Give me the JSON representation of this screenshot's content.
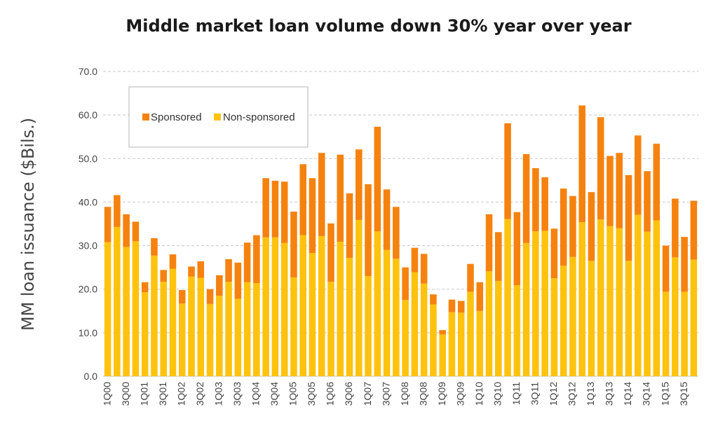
{
  "chart_data": {
    "type": "bar",
    "stacked": true,
    "title": "Middle market loan volume down 30% year over year",
    "ylabel": "MM loan issuance ($Bils.)",
    "xlabel": "",
    "ylim": [
      0,
      70
    ],
    "yticks": [
      0,
      10,
      20,
      30,
      40,
      50,
      60,
      70
    ],
    "ytick_labels": [
      "0.0",
      "10.0",
      "20.0",
      "30.0",
      "40.0",
      "50.0",
      "60.0",
      "70.0"
    ],
    "grid": true,
    "legend_position": "top-left",
    "colors": {
      "Sponsored": "#F5820F",
      "Non-sponsored": "#FFC20E"
    },
    "categories": [
      "1Q00",
      "2Q00",
      "3Q00",
      "4Q00",
      "1Q01",
      "2Q01",
      "3Q01",
      "4Q01",
      "1Q02",
      "2Q02",
      "3Q02",
      "4Q02",
      "1Q03",
      "2Q03",
      "3Q03",
      "4Q03",
      "1Q04",
      "2Q04",
      "3Q04",
      "4Q04",
      "1Q05",
      "2Q05",
      "3Q05",
      "4Q05",
      "1Q06",
      "2Q06",
      "3Q06",
      "4Q06",
      "1Q07",
      "2Q07",
      "3Q07",
      "4Q07",
      "1Q08",
      "2Q08",
      "3Q08",
      "4Q08",
      "1Q09",
      "2Q09",
      "3Q09",
      "4Q09",
      "1Q10",
      "2Q10",
      "3Q10",
      "4Q10",
      "1Q11",
      "2Q11",
      "3Q11",
      "4Q11",
      "1Q12",
      "2Q12",
      "3Q12",
      "4Q12",
      "1Q13",
      "2Q13",
      "3Q13",
      "4Q13",
      "1Q14",
      "2Q14",
      "3Q14",
      "4Q14",
      "1Q15",
      "2Q15",
      "3Q15",
      "4Q15"
    ],
    "x_tick_labels_shown": [
      "1Q00",
      "3Q00",
      "1Q01",
      "3Q01",
      "1Q02",
      "3Q02",
      "1Q03",
      "3Q03",
      "1Q04",
      "3Q04",
      "1Q05",
      "3Q05",
      "1Q06",
      "3Q06",
      "1Q07",
      "3Q07",
      "1Q08",
      "3Q08",
      "1Q09",
      "3Q09",
      "1Q10",
      "3Q10",
      "1Q11",
      "3Q11",
      "1Q12",
      "3Q12",
      "1Q13",
      "3Q13",
      "1Q14",
      "3Q14",
      "1Q15",
      "3Q15"
    ],
    "series": [
      {
        "name": "Non-sponsored",
        "values": [
          30.8,
          34.3,
          29.7,
          31.0,
          19.3,
          27.7,
          21.7,
          24.7,
          16.7,
          22.9,
          22.6,
          16.6,
          18.5,
          21.7,
          17.8,
          21.6,
          21.4,
          31.9,
          31.9,
          30.6,
          22.7,
          32.4,
          28.3,
          32.2,
          21.7,
          30.9,
          27.2,
          35.9,
          23.0,
          33.3,
          29.0,
          27.0,
          17.5,
          23.9,
          21.3,
          16.5,
          9.6,
          14.7,
          14.6,
          19.4,
          15.0,
          24.1,
          21.9,
          36.1,
          20.9,
          30.6,
          33.3,
          33.4,
          22.5,
          25.4,
          27.4,
          35.4,
          26.5,
          36.0,
          34.5,
          34.0,
          26.5,
          37.1,
          33.2,
          35.8,
          19.4,
          27.3,
          19.4,
          26.8
        ]
      },
      {
        "name": "Sponsored",
        "values": [
          8.1,
          7.3,
          7.5,
          4.5,
          2.3,
          4.0,
          2.7,
          3.3,
          3.1,
          2.3,
          3.8,
          3.4,
          4.7,
          5.2,
          8.3,
          9.1,
          11.0,
          13.6,
          13.0,
          14.1,
          15.1,
          16.3,
          17.2,
          19.1,
          13.4,
          20.0,
          14.8,
          16.2,
          21.1,
          24.0,
          13.9,
          11.9,
          7.5,
          5.6,
          6.8,
          2.3,
          1.0,
          2.9,
          2.7,
          6.4,
          6.6,
          13.1,
          11.2,
          22.0,
          16.8,
          20.4,
          14.5,
          12.3,
          11.4,
          17.7,
          14.0,
          26.8,
          15.8,
          23.5,
          16.1,
          17.3,
          19.7,
          18.2,
          13.9,
          17.6,
          10.6,
          13.5,
          12.6,
          13.5
        ]
      }
    ]
  }
}
